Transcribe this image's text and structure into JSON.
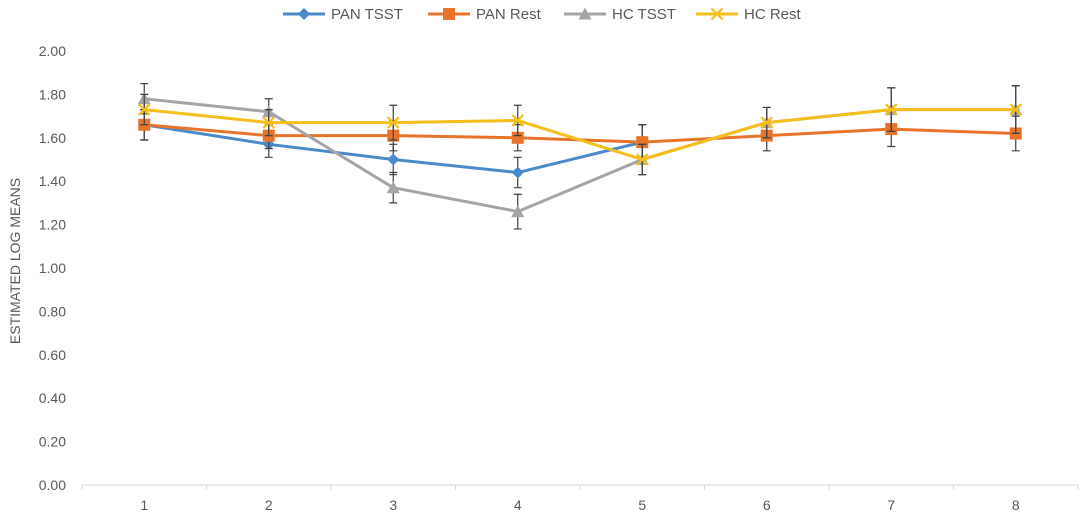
{
  "chart_data": {
    "type": "line",
    "title": "",
    "xlabel": "",
    "ylabel": "ESTIMATED LOG MEANS",
    "ylim": [
      0,
      2.0
    ],
    "ytick_step": 0.2,
    "grid": false,
    "legend_position": "top-center",
    "categories": [
      "1",
      "2",
      "3",
      "4",
      "5",
      "6",
      "7",
      "8"
    ],
    "y_tick_labels": [
      "0.00",
      "0.20",
      "0.40",
      "0.60",
      "0.80",
      "1.00",
      "1.20",
      "1.40",
      "1.60",
      "1.80",
      "2.00"
    ],
    "series": [
      {
        "name": "PAN TSST",
        "color": "#4a8ac9",
        "marker": "diamond",
        "values": [
          1.66,
          1.57,
          1.5,
          1.44,
          1.58,
          null,
          null,
          null
        ],
        "errors": [
          0.07,
          0.06,
          0.07,
          0.07,
          0.08,
          null,
          null,
          null
        ]
      },
      {
        "name": "PAN Rest",
        "color": "#e8742b",
        "marker": "square",
        "values": [
          1.66,
          1.61,
          1.61,
          1.6,
          1.58,
          1.61,
          1.64,
          1.62
        ],
        "errors": [
          0.07,
          0.06,
          0.07,
          0.06,
          0.08,
          0.07,
          0.08,
          0.08
        ]
      },
      {
        "name": "HC TSST",
        "color": "#a5a5a5",
        "marker": "triangle",
        "values": [
          1.78,
          1.72,
          1.37,
          1.26,
          1.5,
          1.67,
          1.73,
          1.73
        ],
        "errors": [
          0.07,
          0.06,
          0.07,
          0.08,
          0.07,
          0.07,
          0.1,
          0.11
        ]
      },
      {
        "name": "HC Rest",
        "color": "#f5be1a",
        "marker": "x",
        "values": [
          1.73,
          1.67,
          1.67,
          1.68,
          1.5,
          1.67,
          1.73,
          1.73
        ],
        "errors": [
          0.07,
          0.06,
          0.08,
          0.07,
          0.07,
          0.07,
          0.1,
          0.11
        ]
      }
    ]
  }
}
